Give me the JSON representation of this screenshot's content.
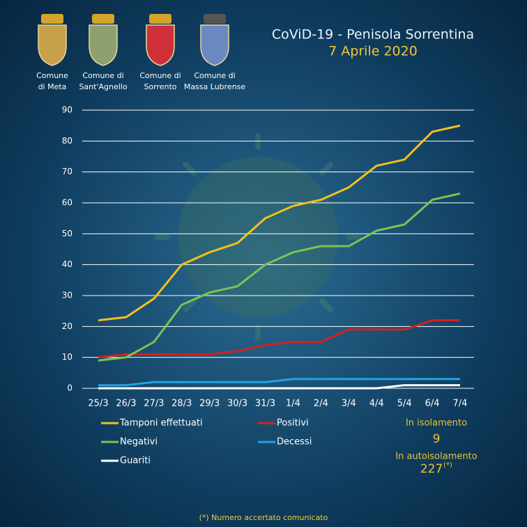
{
  "header": {
    "logos": [
      {
        "caption": [
          "Comune",
          "di Meta"
        ]
      },
      {
        "caption": [
          "Comune di",
          "Sant'Agnello"
        ]
      },
      {
        "caption": [
          "Comune di",
          "Sorrento"
        ]
      },
      {
        "caption": [
          "Comune di",
          "Massa Lubrense"
        ]
      }
    ]
  },
  "chart_data": {
    "type": "line",
    "title": "CoViD-19  - Penisola Sorrentina",
    "subtitle": "7 Aprile 2020",
    "categories": [
      "25/3",
      "26/3",
      "27/3",
      "28/3",
      "29/3",
      "30/3",
      "31/3",
      "1/4",
      "2/4",
      "3/4",
      "4/4",
      "5/4",
      "6/4",
      "7/4"
    ],
    "series": [
      {
        "name": "Tamponi effettuati",
        "color": "#f5c01e",
        "values": [
          22,
          23,
          29,
          40,
          44,
          47,
          55,
          59,
          61,
          65,
          72,
          74,
          83,
          85
        ]
      },
      {
        "name": "Positivi",
        "color": "#d42020",
        "values": [
          10,
          11,
          11,
          11,
          11,
          12,
          14,
          15,
          15,
          19,
          19,
          19,
          22,
          22
        ]
      },
      {
        "name": "Negativi",
        "color": "#7dc452",
        "values": [
          9,
          10,
          15,
          27,
          31,
          33,
          40,
          44,
          46,
          46,
          51,
          53,
          61,
          63
        ]
      },
      {
        "name": "Decessi",
        "color": "#1fa3e8",
        "values": [
          1,
          1,
          2,
          2,
          2,
          2,
          2,
          3,
          3,
          3,
          3,
          3,
          3,
          3
        ]
      },
      {
        "name": "Guariti",
        "color": "#ffffff",
        "values": [
          0,
          0,
          0,
          0,
          0,
          0,
          0,
          0,
          0,
          0,
          0,
          1,
          1,
          1
        ]
      }
    ],
    "ylim": [
      0,
      90
    ],
    "yticks": [
      0,
      10,
      20,
      30,
      40,
      50,
      60,
      70,
      80,
      90
    ],
    "grid": true,
    "annotations": [
      {
        "label": "In isolamento",
        "value": 9
      },
      {
        "label": "In autoisolamento",
        "value": 227,
        "note": "(*)"
      }
    ],
    "footnote": "(*) Numero accertato comunicato"
  }
}
